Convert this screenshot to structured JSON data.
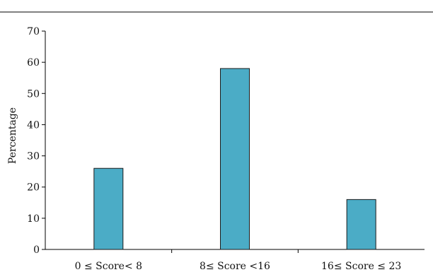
{
  "chart_data": {
    "type": "bar",
    "title": "",
    "xlabel": "",
    "ylabel": "Percentage",
    "categories": [
      "0 ≤ Score< 8",
      "8≤ Score <16",
      "16≤ Score ≤ 23"
    ],
    "values": [
      26,
      58,
      16
    ],
    "ylim": [
      0,
      70
    ],
    "yticks": [
      0,
      10,
      20,
      30,
      40,
      50,
      60,
      70
    ],
    "grid": false,
    "legend": "none",
    "colors": {
      "bar_fill": "#4bacc6",
      "bar_stroke": "#1a1a1a",
      "axis": "#000000"
    }
  }
}
